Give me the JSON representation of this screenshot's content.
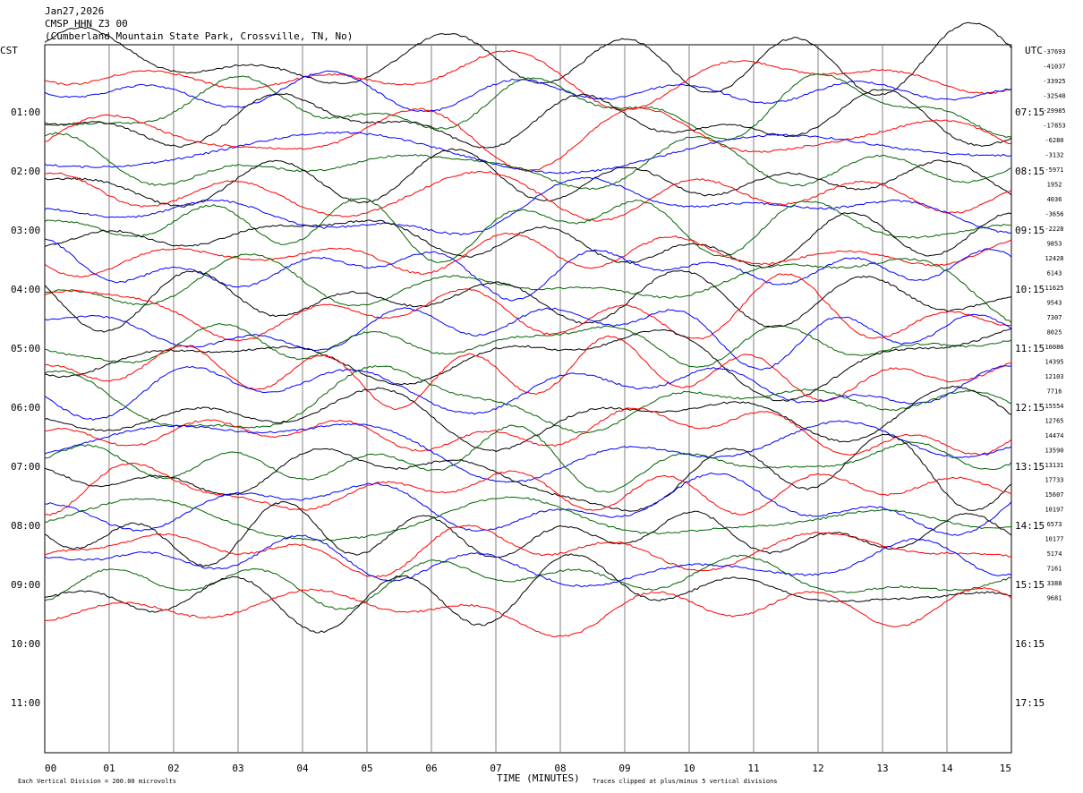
{
  "header": {
    "date": "Jan27,2026",
    "station": "CMSP HHN Z3 00",
    "location": "(Cumberland Mountain State Park, Crossville, TN, No)"
  },
  "footer": {
    "scale_note": "Each Vertical Division =  200.00 microvolts",
    "xlabel": "TIME (MINUTES)",
    "clip_note": "Traces clipped at plus/minus 5 vertical divisions"
  },
  "chart_data": {
    "type": "line",
    "title": "",
    "xlabel": "TIME (MINUTES)",
    "ylabel_left": "CST",
    "ylabel_right": "UTC",
    "xlim": [
      0,
      15
    ],
    "x_ticks": [
      "00",
      "01",
      "02",
      "03",
      "04",
      "05",
      "06",
      "07",
      "08",
      "09",
      "10",
      "11",
      "12",
      "13",
      "14",
      "15"
    ],
    "grid": true,
    "trace_colors": [
      "#000000",
      "#ff0000",
      "#0000ff",
      "#006400"
    ],
    "rows_per_hour": 4,
    "left_hour_labels": [
      "01:00",
      "02:00",
      "03:00",
      "04:00",
      "05:00",
      "06:00",
      "07:00",
      "08:00",
      "09:00",
      "10:00",
      "11:00"
    ],
    "right_hour_labels": [
      "07:15",
      "08:15",
      "09:15",
      "10:15",
      "11:15",
      "12:15",
      "13:15",
      "14:15",
      "15:15",
      "16:15",
      "17:15"
    ],
    "trace_offsets": [
      "-37693",
      "-41037",
      "-33925",
      "-32540",
      "-29985",
      "-17853",
      "-6280",
      "-3132",
      "-5971",
      "1952",
      "4036",
      "-3656",
      "-2228",
      "9853",
      "12428",
      "6143",
      "11625",
      "9543",
      "7307",
      "8025",
      "10086",
      "14395",
      "12103",
      "7716",
      "15554",
      "12765",
      "14474",
      "13590",
      "13131",
      "17733",
      "15607",
      "10197",
      "6573",
      "10177",
      "5174",
      "7161",
      "3388",
      "9681"
    ]
  }
}
